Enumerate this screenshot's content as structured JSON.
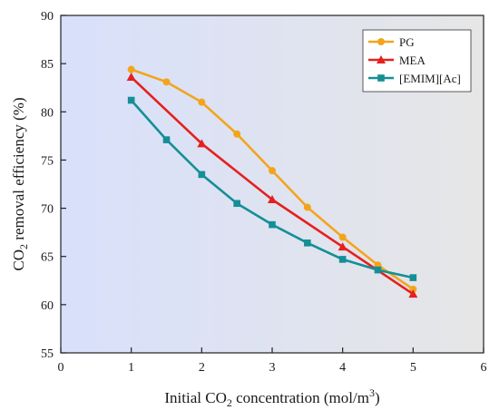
{
  "chart_data": {
    "type": "line",
    "xlabel": {
      "pre": "Initial CO",
      "sub": "2",
      "post": " concentration (mol/m",
      "sup": "3",
      "end": ")"
    },
    "ylabel": {
      "pre": "CO",
      "sub": "2",
      "post": " removal efficiency (%)"
    },
    "xlim": [
      0,
      6
    ],
    "ylim": [
      55,
      90
    ],
    "xticks": [
      0,
      1,
      2,
      3,
      4,
      5,
      6
    ],
    "yticks": [
      55,
      60,
      65,
      70,
      75,
      80,
      85,
      90
    ],
    "grid": false,
    "legend_position": "top-right",
    "background_gradient": [
      "#d8e0fb",
      "#e6e6e6"
    ],
    "series": [
      {
        "name": "PG",
        "color": "#f2a51c",
        "marker": "circle",
        "x": [
          1,
          1.5,
          2,
          2.5,
          3,
          3.5,
          4,
          4.5,
          5
        ],
        "y": [
          84.4,
          83.1,
          81.0,
          77.7,
          73.9,
          70.1,
          67.0,
          64.1,
          61.6
        ]
      },
      {
        "name": "MEA",
        "color": "#e5201e",
        "marker": "triangle",
        "x": [
          1,
          2,
          3,
          4,
          5
        ],
        "y": [
          83.6,
          76.7,
          70.9,
          66.0,
          61.1
        ]
      },
      {
        "name": "[EMIM][Ac]",
        "color": "#148f96",
        "marker": "square",
        "x": [
          1,
          1.5,
          2,
          2.5,
          3,
          3.5,
          4,
          4.5,
          5
        ],
        "y": [
          81.2,
          77.1,
          73.5,
          70.5,
          68.3,
          66.4,
          64.7,
          63.6,
          62.8
        ]
      }
    ]
  }
}
